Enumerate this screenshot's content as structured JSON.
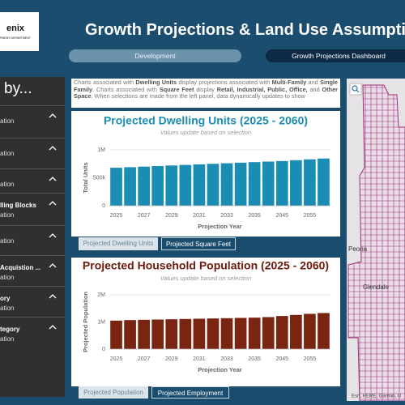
{
  "header": {
    "logo_name": "enix",
    "logo_sub": "PMENT DEPARTMENT",
    "title": "Growth Projections & Land Use Assumptions"
  },
  "nav": [
    "Development",
    "Growth Projections Dashboard"
  ],
  "sidebar": {
    "heading": "by...",
    "items": [
      {
        "title": null,
        "subtitle": "ation"
      },
      {
        "title": null,
        "subtitle": "ation"
      },
      {
        "title": null,
        "subtitle": "ation"
      },
      {
        "title": "lling Blocks",
        "subtitle": "ation"
      },
      {
        "title": null,
        "subtitle": "ation"
      },
      {
        "title": "Acquistion ...",
        "subtitle": "ation"
      },
      {
        "title": "ory",
        "subtitle": "ation"
      },
      {
        "title": "tegory",
        "subtitle": "ation"
      }
    ]
  },
  "description": [
    {
      "text": "Charts associated with ",
      "bold": false
    },
    {
      "text": "Dwelling Units",
      "bold": true
    },
    {
      "text": " display projections associated with ",
      "bold": false
    },
    {
      "text": "Multi-Family",
      "bold": true
    },
    {
      "text": " and ",
      "bold": false
    },
    {
      "text": "Single Family",
      "bold": true
    },
    {
      "text": ". Charts associated with ",
      "bold": false
    },
    {
      "text": "Square Feet",
      "bold": true
    },
    {
      "text": " display ",
      "bold": false
    },
    {
      "text": "Retail, Industrial, Public, Office,",
      "bold": true
    },
    {
      "text": " and ",
      "bold": false
    },
    {
      "text": "Other Space",
      "bold": true
    },
    {
      "text": ". When selections are made from the left panel, data dynamically updates to show",
      "bold": false
    }
  ],
  "chart_data": [
    {
      "type": "bar",
      "title": "Projected Dwelling Units (2025 - 2060)",
      "subtitle": "Values update based on selection",
      "x_label": "Projection Year",
      "y_label": "Total Units",
      "color": "#1b8db2",
      "title_color": "#1b8db2",
      "categories": [
        "2025",
        null,
        "2027",
        null,
        "2029",
        null,
        "2031",
        null,
        "2033",
        null,
        "2035",
        null,
        "2045",
        null,
        "2055",
        null
      ],
      "values": [
        680000,
        690000,
        700000,
        710000,
        720000,
        730000,
        740000,
        750000,
        760000,
        770000,
        780000,
        790000,
        800000,
        815000,
        830000,
        845000
      ],
      "ylim": [
        0,
        1000000
      ],
      "yticks": [
        0,
        {
          "value": 500000,
          "label": "500k"
        },
        {
          "value": 1000000,
          "label": "1M"
        }
      ]
    },
    {
      "type": "bar",
      "title": "Projected Household Population (2025 - 2060)",
      "subtitle": "Values update based on selection",
      "x_label": "Projection Year",
      "y_label": "Projected Population",
      "color": "#7a2512",
      "title_color": "#6e1a0c",
      "categories": [
        "2025",
        null,
        "2027",
        null,
        "2029",
        null,
        "2031",
        null,
        "2033",
        null,
        "2035",
        null,
        "2045",
        null,
        "2055",
        null
      ],
      "values": [
        1050000,
        1070000,
        1080000,
        1090000,
        1100000,
        1110000,
        1120000,
        1130000,
        1140000,
        1150000,
        1160000,
        1180000,
        1220000,
        1260000,
        1300000,
        1330000
      ],
      "ylim": [
        0,
        2000000
      ],
      "yticks": [
        0,
        {
          "value": 1000000,
          "label": "1M"
        },
        {
          "value": 2000000,
          "label": "2M"
        }
      ]
    }
  ],
  "chart_tabs": [
    [
      "Projected Dwelling Units",
      "Projected Square Feet"
    ],
    [
      "Projected Population",
      "Projected Employment"
    ]
  ],
  "map": {
    "labels": [
      "Peoria",
      "Glendale"
    ],
    "attribution": "Esri, HERE, Garmin, U"
  }
}
